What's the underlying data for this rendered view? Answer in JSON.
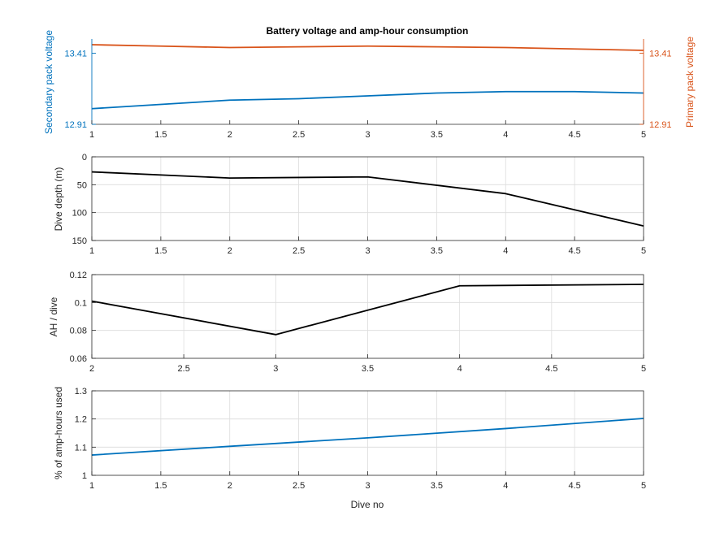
{
  "chart_data": [
    {
      "type": "line",
      "title": "Battery voltage and amp-hour consumption",
      "xlabel": "",
      "ylabel_left": "Secondary pack voltage",
      "ylabel_right": "Primary pack voltage",
      "xlim": [
        1,
        5
      ],
      "xticks": [
        "1",
        "1.5",
        "2",
        "2.5",
        "3",
        "3.5",
        "4",
        "4.5",
        "5"
      ],
      "ylim_left": [
        12.91,
        13.51
      ],
      "ylim_right": [
        12.91,
        13.51
      ],
      "yticks_left": [
        12.91,
        13.41
      ],
      "yticks_right": [
        12.91,
        13.41
      ],
      "grid": false,
      "colors": {
        "left": "#0072BD",
        "right": "#D95319"
      },
      "series": [
        {
          "axis": "right",
          "color": "#D95319",
          "x": [
            1,
            1.5,
            2,
            2.5,
            3,
            3.5,
            4,
            4.5,
            5
          ],
          "y": [
            13.47,
            13.46,
            13.45,
            13.455,
            13.46,
            13.455,
            13.45,
            13.44,
            13.43
          ]
        },
        {
          "axis": "left",
          "color": "#0072BD",
          "x": [
            1,
            1.5,
            2,
            2.5,
            3,
            3.5,
            4,
            4.5,
            5
          ],
          "y": [
            13.02,
            13.05,
            13.08,
            13.09,
            13.11,
            13.13,
            13.14,
            13.14,
            13.13
          ]
        }
      ]
    },
    {
      "type": "line",
      "xlabel": "",
      "ylabel": "Dive depth (m)",
      "xlim": [
        1,
        5
      ],
      "xticks": [
        "1",
        "1.5",
        "2",
        "2.5",
        "3",
        "3.5",
        "4",
        "4.5",
        "5"
      ],
      "ylim": [
        0,
        150
      ],
      "yticks": [
        "0",
        "50",
        "100",
        "150"
      ],
      "reverse_y": true,
      "grid": true,
      "series": [
        {
          "color": "#000000",
          "x": [
            1,
            2,
            3,
            4,
            5
          ],
          "y": [
            27,
            38,
            36,
            66,
            124
          ]
        }
      ]
    },
    {
      "type": "line",
      "xlabel": "",
      "ylabel": "AH / dive",
      "xlim": [
        2,
        5
      ],
      "xticks": [
        "2",
        "2.5",
        "3",
        "3.5",
        "4",
        "4.5",
        "5"
      ],
      "ylim": [
        0.06,
        0.12
      ],
      "yticks": [
        "0.06",
        "0.08",
        "0.1",
        "0.12"
      ],
      "grid": true,
      "series": [
        {
          "color": "#000000",
          "x": [
            2,
            3,
            4,
            5
          ],
          "y": [
            0.101,
            0.077,
            0.112,
            0.113
          ]
        }
      ]
    },
    {
      "type": "line",
      "xlabel": "Dive no",
      "ylabel": "% of amp-hours used",
      "xlim": [
        1,
        5
      ],
      "xticks": [
        "1",
        "1.5",
        "2",
        "2.5",
        "3",
        "3.5",
        "4",
        "4.5",
        "5"
      ],
      "ylim": [
        1,
        1.3
      ],
      "yticks": [
        "1",
        "1.1",
        "1.2",
        "1.3"
      ],
      "grid": true,
      "series": [
        {
          "color": "#0072BD",
          "x": [
            1,
            2,
            3,
            4,
            5
          ],
          "y": [
            1.072,
            1.103,
            1.133,
            1.166,
            1.202
          ]
        }
      ]
    }
  ]
}
